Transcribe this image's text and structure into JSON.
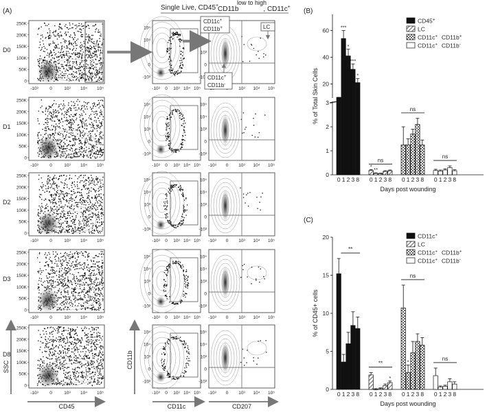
{
  "panel_labels": [
    "(A)",
    "(B)",
    "(C)"
  ],
  "panelA": {
    "row_labels": [
      "D0",
      "D1",
      "D2",
      "D3",
      "D8"
    ],
    "col1_header": "",
    "col2_header": "Single Live, CD45",
    "col2_header_sup": "+",
    "col3_header_main": "CD11b",
    "col3_header_top": "low to high",
    "col3_header_tail": ", CD11c",
    "col3_header_sup": "+",
    "scatter_y_ticks": [
      "250K",
      "200K",
      "150K",
      "100K",
      "50K",
      "0"
    ],
    "scatter_x_ticks": [
      "-10³",
      "0",
      "10³",
      "10⁴",
      "10⁵"
    ],
    "contour_y_ticks": [
      "10⁵",
      "10⁴",
      "10³",
      "0",
      "-10³"
    ],
    "contour_x_ticks": [
      "-10³",
      "0",
      "10³",
      "10⁴",
      "10⁵"
    ],
    "gate_labels": {
      "top_a": "CD11c",
      "top_a_sup": "+",
      "top_b": "CD11b",
      "top_b_sup": "+",
      "lc": "LC",
      "bottom_a": "CD11c",
      "bottom_a_sup": "+",
      "bottom_b": "CD11b",
      "bottom_b_sup": "-"
    },
    "axis_titles": {
      "col1_x": "CD45",
      "col1_y": "SSC",
      "col2_x": "CD11c",
      "col2_y": "CD11b",
      "col3_x": "CD207"
    }
  },
  "chart_data": [
    {
      "type": "bar",
      "panel": "(B)",
      "ylabel": "% of Total Skin Cells",
      "xlabel": "Days post wounding",
      "axis_break": true,
      "ylim_lower": [
        0,
        3
      ],
      "ylim_upper": [
        10,
        70
      ],
      "lower_ticks": [
        0,
        1,
        2,
        3
      ],
      "upper_ticks": [
        20,
        40,
        60
      ],
      "categories": [
        "0",
        "1",
        "2",
        "3",
        "8"
      ],
      "series": [
        {
          "name": "CD45",
          "name_sup": "+",
          "style": "solid",
          "values": [
            8,
            54,
            41,
            31,
            21
          ],
          "errors": [
            2,
            6,
            5,
            4,
            3
          ],
          "sig": [
            "",
            "***",
            "*",
            "***",
            "*"
          ]
        },
        {
          "name": "LC",
          "name_sup": "",
          "style": "hatch",
          "values": [
            0.18,
            0.06,
            0.05,
            0.14,
            0.17
          ],
          "errors": [
            0.04,
            0.02,
            0.02,
            0.03,
            0.03
          ],
          "sig": [
            "*",
            "**",
            "",
            "",
            ""
          ],
          "group_sig": "ns"
        },
        {
          "name": "CD11c",
          "name_sup": "+",
          "name2": "CD11b",
          "name2_sup": "+",
          "style": "check",
          "values": [
            1.25,
            1.25,
            1.7,
            2.1,
            1.25
          ],
          "errors": [
            0.75,
            0.25,
            0.2,
            0.25,
            0.2
          ],
          "sig": [
            "",
            "",
            "",
            "",
            ""
          ],
          "group_sig": "ns"
        },
        {
          "name": "CD11c",
          "name_sup": "+",
          "name2": "CD11b",
          "name2_sup": "-",
          "style": "open",
          "values": [
            0.18,
            0.16,
            0.2,
            0.3,
            0.17
          ],
          "errors": [
            0.05,
            0.04,
            0.05,
            0.07,
            0.04
          ],
          "sig": [
            "",
            "",
            "",
            "",
            ""
          ],
          "group_sig": "ns"
        }
      ]
    },
    {
      "type": "bar",
      "panel": "(C)",
      "ylabel": "% of CD45+ cells",
      "xlabel": "Days post wounding",
      "ylim": [
        0,
        20
      ],
      "ticks": [
        0,
        5,
        10,
        15,
        20
      ],
      "categories": [
        "0",
        "1",
        "2",
        "3",
        "8"
      ],
      "series": [
        {
          "name": "CD11c",
          "name_sup": "+",
          "style": "solid",
          "values": [
            15.2,
            3.6,
            6.0,
            8.4,
            8.0
          ],
          "errors": [
            2.0,
            1.0,
            1.5,
            1.8,
            1.5
          ],
          "sig": [
            "",
            "",
            "",
            "",
            ""
          ],
          "group_sig": "**"
        },
        {
          "name": "LC",
          "name_sup": "",
          "style": "hatch",
          "values": [
            1.9,
            0.0,
            0.1,
            0.5,
            0.9
          ],
          "errors": [
            0.3,
            0.1,
            0.1,
            0.2,
            0.2
          ],
          "sig": [
            "",
            "",
            "",
            "",
            "*"
          ],
          "group_sig": "**"
        },
        {
          "name": "CD11c",
          "name_sup": "+",
          "name2": "CD11b",
          "name2_sup": "+",
          "style": "check",
          "values": [
            10.7,
            2.2,
            4.8,
            6.3,
            5.8
          ],
          "errors": [
            3.0,
            1.0,
            1.5,
            1.0,
            1.0
          ],
          "sig": [
            "",
            "*",
            "",
            "",
            ""
          ],
          "group_sig": "ns"
        },
        {
          "name": "CD11c",
          "name_sup": "+",
          "name2": "CD11b",
          "name2_sup": "-",
          "style": "open",
          "values": [
            1.8,
            0.3,
            0.4,
            1.0,
            0.7
          ],
          "errors": [
            1.0,
            0.15,
            0.15,
            0.4,
            0.3
          ],
          "sig": [
            "",
            "",
            "",
            "",
            ""
          ],
          "group_sig": "ns"
        }
      ]
    }
  ]
}
